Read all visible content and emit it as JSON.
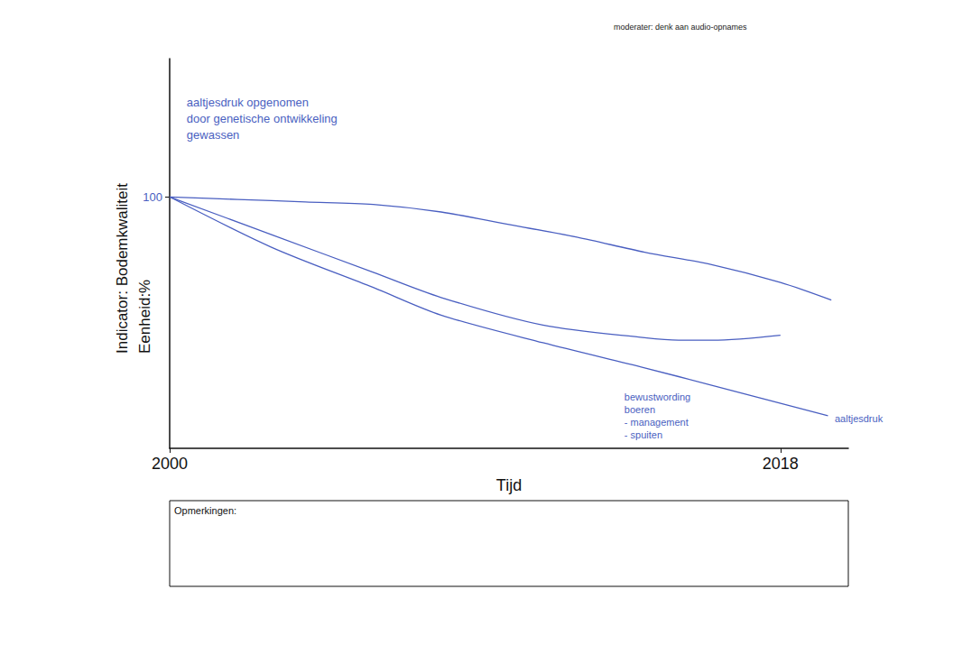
{
  "chart_data": {
    "type": "line",
    "title": "moderater: denk aan audio-opnames",
    "y_label": "Indicator: Bodemkwaliteit",
    "y_unit": "Eenheid:%",
    "x_label": "Tijd",
    "color": "#4a5fc1",
    "grid": false,
    "xlim": [
      2000,
      2020
    ],
    "xticks": [
      2000,
      2018
    ],
    "ylim": [
      0,
      155
    ],
    "yticks": [
      100
    ],
    "series": [
      {
        "x": [
          2000,
          2002,
          2004,
          2006,
          2008,
          2010,
          2012,
          2014,
          2016,
          2018,
          2019.5
        ],
        "values": [
          100,
          99,
          98,
          97,
          94,
          89,
          84,
          78,
          73,
          66,
          59
        ]
      },
      {
        "x": [
          2000,
          2003,
          2006,
          2008,
          2011,
          2014,
          2015,
          2016,
          2018
        ],
        "values": [
          100,
          85,
          70,
          60,
          49,
          44,
          43,
          43,
          45
        ]
      },
      {
        "x": [
          2000,
          2003,
          2006,
          2008,
          2011,
          2014,
          2016,
          2019.4
        ],
        "values": [
          100,
          80,
          64,
          53,
          42,
          32,
          25,
          13
        ]
      }
    ],
    "annotations": [
      {
        "text": [
          "aaltjesdruk opgenomen",
          "door genetische ontwikkeling",
          "gewassen"
        ],
        "x": 2000.5,
        "y": 141
      },
      {
        "text": [
          "bewustwording",
          "boeren",
          "- management",
          "- spuiten"
        ],
        "x": 2013.4,
        "y": 23
      },
      {
        "text": [
          "aaltjesdruk"
        ],
        "x": 2019.6,
        "y": 12
      }
    ],
    "remarks_label": "Opmerkingen:"
  }
}
